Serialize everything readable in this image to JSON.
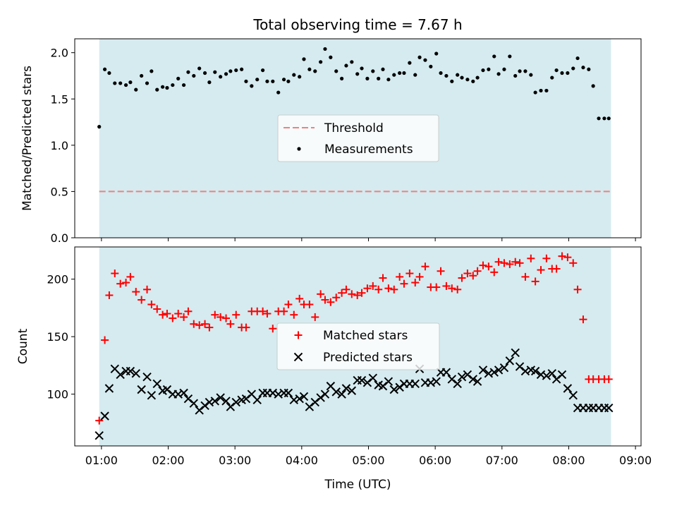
{
  "chart_data": [
    {
      "type": "scatter",
      "title": "Total observing time = 7.67 h",
      "ylabel": "Matched/Predicted stars",
      "xlabel": "",
      "xlim": [
        "00:36",
        "09:05"
      ],
      "ylim": [
        0,
        2.15
      ],
      "yticks": [
        "0.0",
        "0.5",
        "1.0",
        "1.5",
        "2.0"
      ],
      "yticks_values": [
        0,
        0.5,
        1.0,
        1.5,
        2.0
      ],
      "shaded_span": [
        "00:58",
        "08:38"
      ],
      "shade_color": "#add8e6",
      "legend_position": "center",
      "threshold": {
        "name": "Threshold",
        "value": 0.5,
        "color": "#f08080",
        "style": "dashed"
      },
      "series": [
        {
          "name": "Measurements",
          "marker": "dot",
          "color": "#000000",
          "x": [
            "00:58",
            "01:03",
            "01:07",
            "01:12",
            "01:17",
            "01:22",
            "01:26",
            "01:31",
            "01:36",
            "01:41",
            "01:45",
            "01:50",
            "01:55",
            "01:59",
            "02:04",
            "02:09",
            "02:14",
            "02:18",
            "02:23",
            "02:28",
            "02:33",
            "02:37",
            "02:42",
            "02:47",
            "02:52",
            "02:56",
            "03:01",
            "03:06",
            "03:10",
            "03:15",
            "03:20",
            "03:25",
            "03:29",
            "03:34",
            "03:39",
            "03:44",
            "03:48",
            "03:53",
            "03:58",
            "04:02",
            "04:07",
            "04:12",
            "04:17",
            "04:21",
            "04:26",
            "04:31",
            "04:36",
            "04:40",
            "04:45",
            "04:50",
            "04:54",
            "04:59",
            "05:04",
            "05:09",
            "05:13",
            "05:18",
            "05:23",
            "05:28",
            "05:32",
            "05:37",
            "05:42",
            "05:46",
            "05:51",
            "05:56",
            "06:01",
            "06:05",
            "06:10",
            "06:15",
            "06:20",
            "06:24",
            "06:29",
            "06:34",
            "06:38",
            "06:43",
            "06:48",
            "06:53",
            "06:57",
            "07:02",
            "07:07",
            "07:12",
            "07:16",
            "07:21",
            "07:26",
            "07:30",
            "07:35",
            "07:40",
            "07:45",
            "07:49",
            "07:54",
            "07:59",
            "08:04",
            "08:08",
            "08:13",
            "08:18",
            "08:22",
            "08:27",
            "08:32",
            "08:36"
          ],
          "y": [
            1.2,
            1.82,
            1.78,
            1.67,
            1.67,
            1.65,
            1.68,
            1.6,
            1.75,
            1.67,
            1.8,
            1.6,
            1.63,
            1.62,
            1.65,
            1.72,
            1.65,
            1.79,
            1.75,
            1.83,
            1.78,
            1.68,
            1.79,
            1.74,
            1.77,
            1.8,
            1.81,
            1.82,
            1.69,
            1.64,
            1.71,
            1.81,
            1.69,
            1.69,
            1.57,
            1.71,
            1.69,
            1.76,
            1.74,
            1.93,
            1.82,
            1.8,
            1.9,
            2.04,
            1.95,
            1.8,
            1.72,
            1.86,
            1.9,
            1.77,
            1.83,
            1.72,
            1.8,
            1.72,
            1.82,
            1.71,
            1.76,
            1.78,
            1.78,
            1.89,
            1.76,
            1.95,
            1.92,
            1.85,
            1.99,
            1.78,
            1.75,
            1.69,
            1.76,
            1.73,
            1.71,
            1.69,
            1.73,
            1.81,
            1.82,
            1.96,
            1.77,
            1.82,
            1.96,
            1.75,
            1.8,
            1.8,
            1.76,
            1.57,
            1.59,
            1.59,
            1.73,
            1.81,
            1.78,
            1.78,
            1.83,
            1.94,
            1.84,
            1.82,
            1.64,
            1.29,
            1.29,
            1.29
          ]
        }
      ]
    },
    {
      "type": "scatter",
      "title": "",
      "ylabel": "Count",
      "xlabel": "Time (UTC)",
      "xlim": [
        "00:36",
        "09:05"
      ],
      "ylim": [
        55,
        228
      ],
      "yticks": [
        "100",
        "150",
        "200"
      ],
      "yticks_values": [
        100,
        150,
        200
      ],
      "xticks": [
        "01:00",
        "02:00",
        "03:00",
        "04:00",
        "05:00",
        "06:00",
        "07:00",
        "08:00",
        "09:00"
      ],
      "shaded_span": [
        "00:58",
        "08:38"
      ],
      "shade_color": "#add8e6",
      "legend_position": "center",
      "series": [
        {
          "name": "Matched stars",
          "marker": "plus",
          "color": "#ff0000",
          "x": [
            "00:58",
            "01:03",
            "01:07",
            "01:12",
            "01:17",
            "01:22",
            "01:26",
            "01:31",
            "01:36",
            "01:41",
            "01:45",
            "01:50",
            "01:55",
            "01:59",
            "02:04",
            "02:09",
            "02:14",
            "02:18",
            "02:23",
            "02:28",
            "02:33",
            "02:37",
            "02:42",
            "02:47",
            "02:52",
            "02:56",
            "03:01",
            "03:06",
            "03:10",
            "03:15",
            "03:20",
            "03:25",
            "03:29",
            "03:34",
            "03:39",
            "03:44",
            "03:48",
            "03:53",
            "03:58",
            "04:02",
            "04:07",
            "04:12",
            "04:17",
            "04:21",
            "04:26",
            "04:31",
            "04:36",
            "04:40",
            "04:45",
            "04:50",
            "04:54",
            "04:59",
            "05:04",
            "05:09",
            "05:13",
            "05:18",
            "05:23",
            "05:28",
            "05:32",
            "05:37",
            "05:42",
            "05:46",
            "05:51",
            "05:56",
            "06:01",
            "06:05",
            "06:10",
            "06:15",
            "06:20",
            "06:24",
            "06:29",
            "06:34",
            "06:38",
            "06:43",
            "06:48",
            "06:53",
            "06:57",
            "07:02",
            "07:07",
            "07:12",
            "07:16",
            "07:21",
            "07:26",
            "07:30",
            "07:35",
            "07:40",
            "07:45",
            "07:49",
            "07:54",
            "07:59",
            "08:04",
            "08:08",
            "08:13",
            "08:18",
            "08:22",
            "08:27",
            "08:32",
            "08:36"
          ],
          "y": [
            77,
            147,
            186,
            205,
            196,
            197,
            202,
            189,
            182,
            191,
            178,
            174,
            169,
            170,
            166,
            170,
            167,
            172,
            161,
            160,
            161,
            158,
            169,
            167,
            166,
            161,
            169,
            158,
            158,
            172,
            172,
            172,
            170,
            157,
            172,
            172,
            178,
            169,
            183,
            178,
            178,
            167,
            187,
            182,
            180,
            184,
            188,
            191,
            187,
            186,
            188,
            192,
            194,
            191,
            201,
            192,
            191,
            202,
            196,
            205,
            197,
            202,
            211,
            193,
            193,
            207,
            194,
            192,
            191,
            201,
            205,
            203,
            207,
            212,
            211,
            206,
            215,
            214,
            213,
            215,
            214,
            202,
            218,
            198,
            208,
            218,
            209,
            209,
            220,
            219,
            214,
            191,
            165,
            113,
            113,
            113,
            113,
            113
          ]
        },
        {
          "name": "Predicted stars",
          "marker": "x",
          "color": "#000000",
          "x": [
            "00:58",
            "01:03",
            "01:07",
            "01:12",
            "01:17",
            "01:22",
            "01:26",
            "01:31",
            "01:36",
            "01:41",
            "01:45",
            "01:50",
            "01:55",
            "01:59",
            "02:04",
            "02:09",
            "02:14",
            "02:18",
            "02:23",
            "02:28",
            "02:33",
            "02:37",
            "02:42",
            "02:47",
            "02:52",
            "02:56",
            "03:01",
            "03:06",
            "03:10",
            "03:15",
            "03:20",
            "03:25",
            "03:29",
            "03:34",
            "03:39",
            "03:44",
            "03:48",
            "03:53",
            "03:58",
            "04:02",
            "04:07",
            "04:12",
            "04:17",
            "04:21",
            "04:26",
            "04:31",
            "04:36",
            "04:40",
            "04:45",
            "04:50",
            "04:54",
            "04:59",
            "05:04",
            "05:09",
            "05:13",
            "05:18",
            "05:23",
            "05:28",
            "05:32",
            "05:37",
            "05:42",
            "05:46",
            "05:51",
            "05:56",
            "06:01",
            "06:05",
            "06:10",
            "06:15",
            "06:20",
            "06:24",
            "06:29",
            "06:34",
            "06:38",
            "06:43",
            "06:48",
            "06:53",
            "06:57",
            "07:02",
            "07:07",
            "07:12",
            "07:16",
            "07:21",
            "07:26",
            "07:30",
            "07:35",
            "07:40",
            "07:45",
            "07:49",
            "07:54",
            "07:59",
            "08:04",
            "08:08",
            "08:13",
            "08:18",
            "08:22",
            "08:27",
            "08:32",
            "08:36"
          ],
          "y": [
            64,
            81,
            105,
            122,
            117,
            120,
            120,
            118,
            104,
            115,
            99,
            109,
            103,
            104,
            100,
            100,
            101,
            96,
            92,
            86,
            90,
            93,
            94,
            97,
            94,
            89,
            93,
            95,
            96,
            100,
            95,
            101,
            101,
            101,
            100,
            101,
            101,
            95,
            96,
            98,
            89,
            93,
            97,
            100,
            107,
            102,
            100,
            105,
            103,
            112,
            112,
            110,
            114,
            108,
            107,
            111,
            104,
            106,
            109,
            109,
            109,
            122,
            110,
            110,
            111,
            119,
            119,
            113,
            109,
            115,
            117,
            113,
            111,
            121,
            118,
            119,
            121,
            123,
            129,
            136,
            124,
            120,
            121,
            120,
            117,
            116,
            118,
            113,
            117,
            105,
            99,
            88,
            88,
            88,
            88,
            88,
            88,
            88
          ]
        }
      ]
    }
  ]
}
